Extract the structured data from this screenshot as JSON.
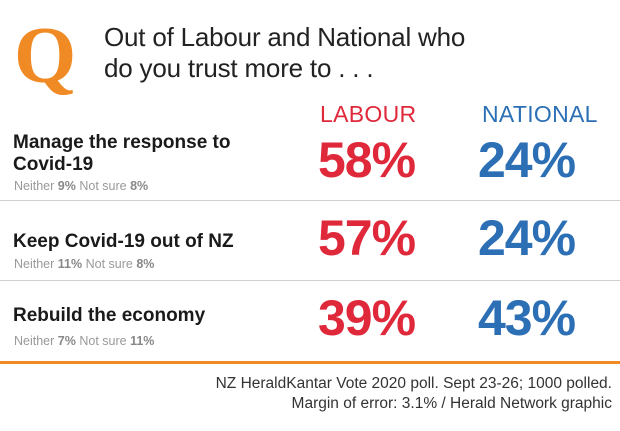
{
  "header": {
    "logo_letter": "Q",
    "title_line1": "Out of Labour and National who",
    "title_line2": "do you trust more to . . ."
  },
  "chart_data": {
    "type": "table",
    "title": "Out of Labour and National who do you trust more to . . .",
    "columns": [
      "LABOUR",
      "NATIONAL"
    ],
    "colors": {
      "labour": "#e0283b",
      "national": "#2c6fb5",
      "accent": "#f08a24"
    },
    "rows": [
      {
        "question": "Manage the response to Covid-19",
        "labour": "58%",
        "national": "24%",
        "neither_label": "Neither",
        "neither": "9%",
        "not_sure_label": "Not sure",
        "not_sure": "8%"
      },
      {
        "question": "Keep Covid-19 out of NZ",
        "labour": "57%",
        "national": "24%",
        "neither_label": "Neither",
        "neither": "11%",
        "not_sure_label": "Not sure",
        "not_sure": "8%"
      },
      {
        "question": "Rebuild the economy",
        "labour": "39%",
        "national": "43%",
        "neither_label": "Neither",
        "neither": "7%",
        "not_sure_label": "Not sure",
        "not_sure": "11%"
      }
    ]
  },
  "footer": {
    "source_line1": "NZ HeraldKantar Vote 2020 poll. Sept 23-26; 1000 polled.",
    "source_line2": "Margin of error: 3.1% / Herald Network graphic"
  }
}
